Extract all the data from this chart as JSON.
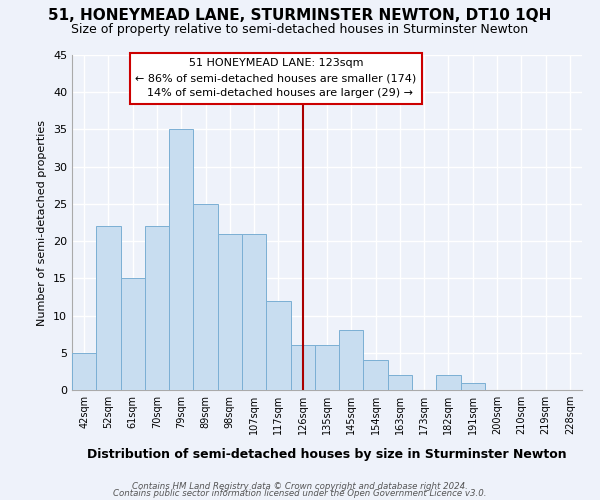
{
  "title": "51, HONEYMEAD LANE, STURMINSTER NEWTON, DT10 1QH",
  "subtitle": "Size of property relative to semi-detached houses in Sturminster Newton",
  "xlabel": "Distribution of semi-detached houses by size in Sturminster Newton",
  "ylabel": "Number of semi-detached properties",
  "footnote1": "Contains HM Land Registry data © Crown copyright and database right 2024.",
  "footnote2": "Contains public sector information licensed under the Open Government Licence v3.0.",
  "bin_labels": [
    "42sqm",
    "52sqm",
    "61sqm",
    "70sqm",
    "79sqm",
    "89sqm",
    "98sqm",
    "107sqm",
    "117sqm",
    "126sqm",
    "135sqm",
    "145sqm",
    "154sqm",
    "163sqm",
    "173sqm",
    "182sqm",
    "191sqm",
    "200sqm",
    "210sqm",
    "219sqm",
    "228sqm"
  ],
  "bar_heights": [
    5,
    22,
    15,
    22,
    35,
    25,
    21,
    21,
    12,
    6,
    6,
    8,
    4,
    2,
    0,
    2,
    1,
    0,
    0,
    0,
    0
  ],
  "bar_color": "#c8ddf0",
  "bar_edge_color": "#7bafd4",
  "property_label": "51 HONEYMEAD LANE: 123sqm",
  "pct_smaller": 86,
  "n_smaller": 174,
  "pct_larger": 14,
  "n_larger": 29,
  "vline_color": "#aa0000",
  "vline_x_index": 9,
  "ylim": [
    0,
    45
  ],
  "yticks": [
    0,
    5,
    10,
    15,
    20,
    25,
    30,
    35,
    40,
    45
  ],
  "background_color": "#eef2fa",
  "grid_color": "#ffffff",
  "annotation_border_color": "#cc0000",
  "title_fontsize": 11,
  "subtitle_fontsize": 9
}
